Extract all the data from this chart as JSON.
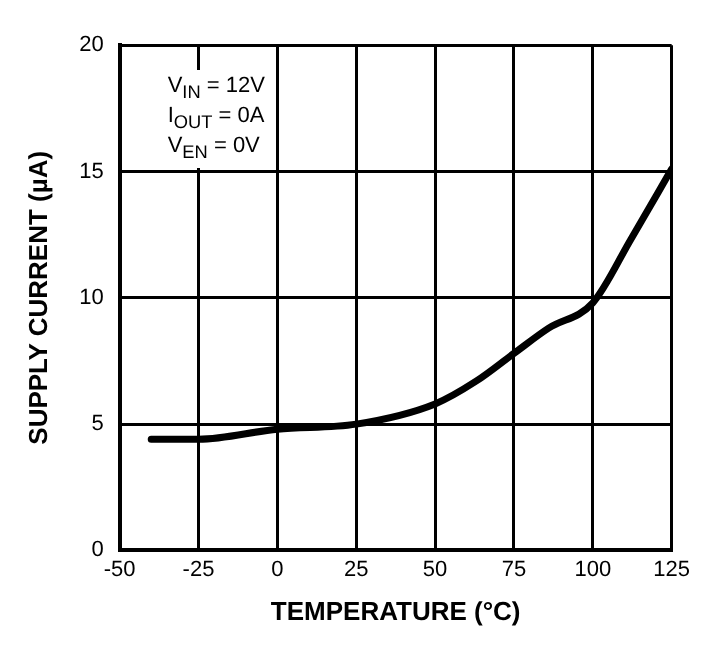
{
  "chart_data": {
    "type": "line",
    "xlabel": "TEMPERATURE (°C)",
    "ylabel": "SUPPLY CURRENT (µA)",
    "annotations": [
      "V$_{IN}$ = 12V",
      "I$_{OUT}$ = 0A",
      "V$_{EN}$ = 0V"
    ],
    "x": [
      -40,
      -25,
      0,
      25,
      50,
      63,
      75,
      86,
      100,
      112,
      125
    ],
    "series": [
      {
        "color": "#000000",
        "values": [
          4.4,
          4.4,
          4.8,
          5.0,
          5.8,
          6.7,
          7.8,
          8.8,
          9.8,
          12.3,
          15.1
        ]
      }
    ],
    "xlim": [
      -50,
      125
    ],
    "xticks": [
      -50,
      -25,
      0,
      25,
      50,
      75,
      100,
      125
    ],
    "ylim": [
      0,
      20
    ],
    "yticks": [
      0,
      5,
      10,
      15,
      20
    ],
    "grid": true,
    "legend": false,
    "marker": "none",
    "line_style": "solid"
  }
}
